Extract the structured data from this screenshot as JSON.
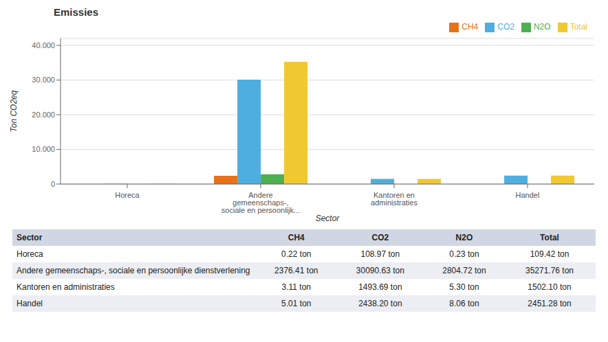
{
  "chart_data": {
    "type": "bar",
    "title": "Emissies",
    "xlabel": "Sector",
    "ylabel": "Ton CO2eq",
    "categories": [
      "Horeca",
      "Andere gemeenschaps-, sociale en persoonlijk...",
      "Kantoren en administraties",
      "Handel"
    ],
    "series": [
      {
        "name": "CH4",
        "color": "#E8711A",
        "values": [
          0.22,
          2376.41,
          3.11,
          5.01
        ]
      },
      {
        "name": "CO2",
        "color": "#4DAEDF",
        "values": [
          108.97,
          30090.63,
          1493.69,
          2438.2
        ]
      },
      {
        "name": "N2O",
        "color": "#4CAF50",
        "values": [
          0.23,
          2804.72,
          5.3,
          8.06
        ]
      },
      {
        "name": "Total",
        "color": "#F0C830",
        "values": [
          109.42,
          35271.76,
          1502.1,
          2451.28
        ]
      }
    ],
    "ylim": [
      0,
      42000
    ],
    "yticks": [
      0,
      {
        "value": 10000,
        "label": "10.000"
      },
      {
        "value": 20000,
        "label": "20.000"
      },
      {
        "value": 30000,
        "label": "30.000"
      },
      {
        "value": 40000,
        "label": "40.000"
      }
    ],
    "grid": true,
    "legend": "upper right",
    "table": {
      "columns": [
        "Sector",
        "CH4",
        "CO2",
        "N2O",
        "Total"
      ],
      "rows": [
        [
          "Horeca",
          "0.22 ton",
          "108.97 ton",
          "0.23 ton",
          "109.42 ton"
        ],
        [
          "Andere gemeenschaps-, sociale en persoonlijke dienstverlening",
          "2376.41 ton",
          "30090.63 ton",
          "2804.72 ton",
          "35271.76 ton"
        ],
        [
          "Kantoren en administraties",
          "3.11 ton",
          "1493.69 ton",
          "5.30 ton",
          "1502.10 ton"
        ],
        [
          "Handel",
          "5.01 ton",
          "2438.20 ton",
          "8.06 ton",
          "2451.28 ton"
        ]
      ]
    }
  }
}
